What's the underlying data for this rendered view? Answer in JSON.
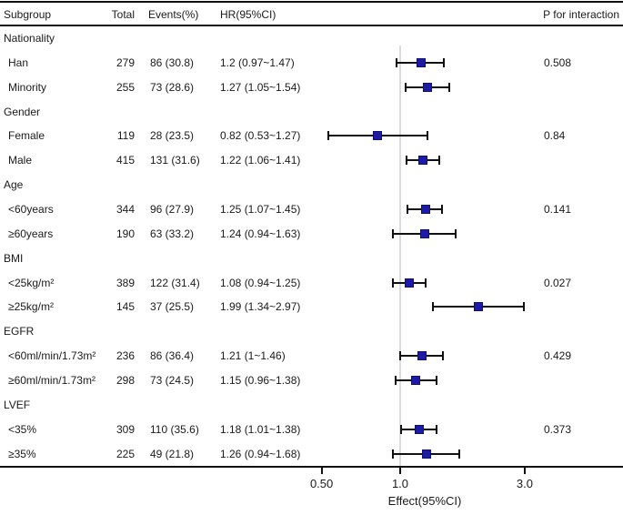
{
  "columns": {
    "subgroup": "Subgroup",
    "total": "Total",
    "events": "Events(%)",
    "hr": "HR(95%CI)",
    "p_interaction": "P for interaction"
  },
  "axis": {
    "tick_labels": [
      "0.50",
      "1.0",
      "3.0"
    ],
    "tick_values": [
      0.5,
      1.0,
      3.0
    ],
    "xlabel": "Effect(95%CI)"
  },
  "colors": {
    "marker_fill": "#1b1ba8",
    "marker_border": "#10106b",
    "ci_line": "#111111",
    "reference_line": "#dcdcdc",
    "text": "#1a1a1a"
  },
  "chart_data": {
    "type": "forest",
    "xscale": "log",
    "xlabel": "Effect(95%CI)",
    "reference_value": 1.0,
    "xticks": [
      0.5,
      1.0,
      3.0
    ],
    "xtick_labels": [
      "0.50",
      "1.0",
      "3.0"
    ],
    "xlim": [
      0.35,
      4.3
    ],
    "rows": [
      {
        "kind": "group",
        "label": "Nationality"
      },
      {
        "kind": "item",
        "label": "Han",
        "total": "279",
        "events": "86 (30.8)",
        "hr_text": "1.2 (0.97~1.47)",
        "hr": 1.2,
        "lo": 0.97,
        "hi": 1.47,
        "p": "0.508"
      },
      {
        "kind": "item",
        "label": "Minority",
        "total": "255",
        "events": "73 (28.6)",
        "hr_text": "1.27 (1.05~1.54)",
        "hr": 1.27,
        "lo": 1.05,
        "hi": 1.54
      },
      {
        "kind": "group",
        "label": "Gender"
      },
      {
        "kind": "item",
        "label": "Female",
        "total": "119",
        "events": "28 (23.5)",
        "hr_text": "0.82 (0.53~1.27)",
        "hr": 0.82,
        "lo": 0.53,
        "hi": 1.27,
        "p": "0.84"
      },
      {
        "kind": "item",
        "label": "Male",
        "total": "415",
        "events": "131 (31.6)",
        "hr_text": "1.22 (1.06~1.41)",
        "hr": 1.22,
        "lo": 1.06,
        "hi": 1.41
      },
      {
        "kind": "group",
        "label": "Age"
      },
      {
        "kind": "item",
        "label": "<60years",
        "total": "344",
        "events": "96 (27.9)",
        "hr_text": "1.25 (1.07~1.45)",
        "hr": 1.25,
        "lo": 1.07,
        "hi": 1.45,
        "p": "0.141"
      },
      {
        "kind": "item",
        "label": "≥60years",
        "total": "190",
        "events": "63 (33.2)",
        "hr_text": "1.24 (0.94~1.63)",
        "hr": 1.24,
        "lo": 0.94,
        "hi": 1.63
      },
      {
        "kind": "group",
        "label": "BMI"
      },
      {
        "kind": "item",
        "label": "<25kg/m²",
        "total": "389",
        "events": "122 (31.4)",
        "hr_text": "1.08 (0.94~1.25)",
        "hr": 1.08,
        "lo": 0.94,
        "hi": 1.25,
        "p": "0.027"
      },
      {
        "kind": "item",
        "label": "≥25kg/m²",
        "total": "145",
        "events": "37 (25.5)",
        "hr_text": "1.99 (1.34~2.97)",
        "hr": 1.99,
        "lo": 1.34,
        "hi": 2.97
      },
      {
        "kind": "group",
        "label": "EGFR"
      },
      {
        "kind": "item",
        "label": "<60ml/min/1.73m²",
        "total": "236",
        "events": "86 (36.4)",
        "hr_text": "1.21 (1~1.46)",
        "hr": 1.21,
        "lo": 1.0,
        "hi": 1.46,
        "p": "0.429"
      },
      {
        "kind": "item",
        "label": "≥60ml/min/1.73m²",
        "total": "298",
        "events": "73 (24.5)",
        "hr_text": "1.15 (0.96~1.38)",
        "hr": 1.15,
        "lo": 0.96,
        "hi": 1.38
      },
      {
        "kind": "group",
        "label": "LVEF"
      },
      {
        "kind": "item",
        "label": "<35%",
        "total": "309",
        "events": "110 (35.6)",
        "hr_text": "1.18 (1.01~1.38)",
        "hr": 1.18,
        "lo": 1.01,
        "hi": 1.38,
        "p": "0.373"
      },
      {
        "kind": "item",
        "label": "≥35%",
        "total": "225",
        "events": "49 (21.8)",
        "hr_text": "1.26 (0.94~1.68)",
        "hr": 1.26,
        "lo": 0.94,
        "hi": 1.68
      }
    ]
  }
}
